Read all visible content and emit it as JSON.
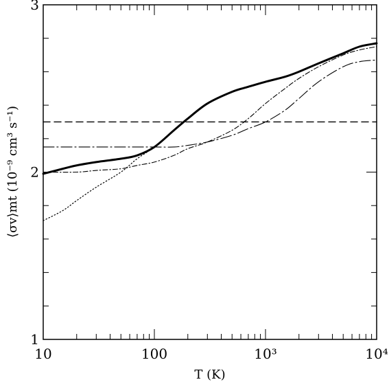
{
  "chart_data": {
    "type": "line",
    "title": "",
    "xlabel": "T (K)",
    "ylabel": "⟨σv⟩mt (10⁻⁹ cm³ s⁻¹)",
    "x_scale": "log",
    "xlim": [
      10,
      10000
    ],
    "ylim": [
      1,
      3
    ],
    "grid": false,
    "legend": "none",
    "x_ticks": [
      {
        "value": 10,
        "label": "10"
      },
      {
        "value": 100,
        "label": "100"
      },
      {
        "value": 1000,
        "label": "10³"
      },
      {
        "value": 10000,
        "label": "10⁴"
      }
    ],
    "y_ticks": [
      {
        "value": 1,
        "label": "1"
      },
      {
        "value": 2,
        "label": "2"
      },
      {
        "value": 3,
        "label": "3"
      }
    ],
    "series": [
      {
        "style": "solid-thick",
        "x": [
          10,
          15,
          20,
          30,
          50,
          70,
          100,
          150,
          200,
          300,
          500,
          700,
          1000,
          1500,
          2000,
          3000,
          5000,
          7000,
          10000
        ],
        "y": [
          1.99,
          2.02,
          2.04,
          2.06,
          2.08,
          2.1,
          2.15,
          2.25,
          2.32,
          2.41,
          2.48,
          2.51,
          2.54,
          2.57,
          2.6,
          2.65,
          2.71,
          2.75,
          2.77
        ]
      },
      {
        "style": "dotted",
        "x": [
          10,
          15,
          20,
          30,
          50,
          70,
          100,
          150,
          200
        ],
        "y": [
          1.71,
          1.77,
          1.83,
          1.91,
          2.0,
          2.08,
          2.15,
          2.25,
          2.32
        ]
      },
      {
        "style": "dashed",
        "x": [
          10,
          10000
        ],
        "y": [
          2.3,
          2.3
        ]
      },
      {
        "style": "dash-dot",
        "x": [
          10,
          20,
          30,
          50,
          70,
          100,
          150,
          200,
          300,
          500,
          700,
          1000,
          1500,
          2000,
          3000,
          5000,
          7000,
          10000
        ],
        "y": [
          2.0,
          2.0,
          2.01,
          2.02,
          2.04,
          2.06,
          2.1,
          2.14,
          2.18,
          2.25,
          2.32,
          2.41,
          2.5,
          2.56,
          2.63,
          2.7,
          2.73,
          2.75
        ]
      },
      {
        "style": "long-dash-dot",
        "x": [
          10,
          30,
          50,
          100,
          150,
          200,
          300,
          500,
          700,
          1000,
          1500,
          2000,
          3000,
          5000,
          7000,
          10000
        ],
        "y": [
          2.15,
          2.15,
          2.15,
          2.15,
          2.15,
          2.16,
          2.18,
          2.22,
          2.26,
          2.3,
          2.37,
          2.44,
          2.54,
          2.63,
          2.66,
          2.67
        ]
      }
    ]
  }
}
